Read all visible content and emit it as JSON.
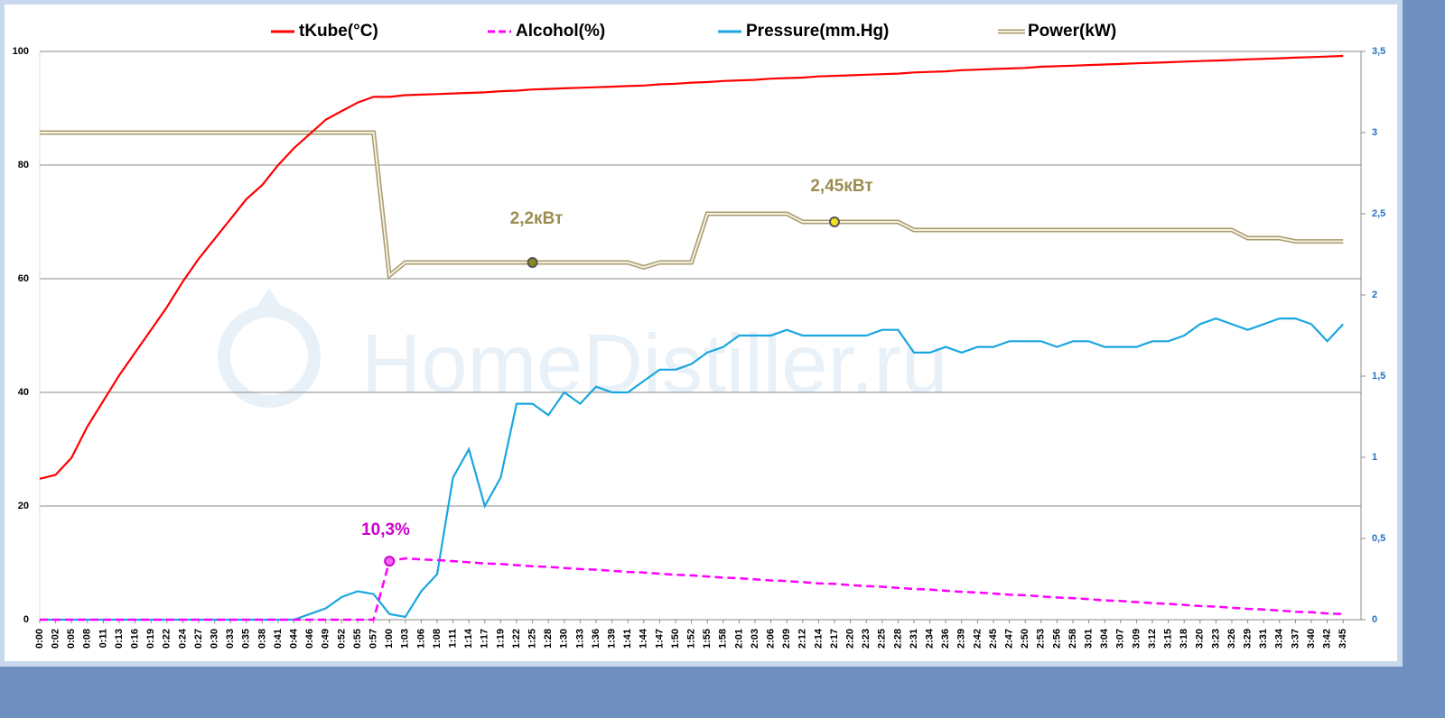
{
  "chart_data": {
    "type": "line",
    "watermark": "HomeDistiller.ru",
    "categories": [
      "0:00",
      "0:02",
      "0:05",
      "0:08",
      "0:11",
      "0:13",
      "0:16",
      "0:19",
      "0:22",
      "0:24",
      "0:27",
      "0:30",
      "0:33",
      "0:35",
      "0:38",
      "0:41",
      "0:44",
      "0:46",
      "0:49",
      "0:52",
      "0:55",
      "0:57",
      "1:00",
      "1:03",
      "1:06",
      "1:08",
      "1:11",
      "1:14",
      "1:17",
      "1:19",
      "1:22",
      "1:25",
      "1:28",
      "1:30",
      "1:33",
      "1:36",
      "1:39",
      "1:41",
      "1:44",
      "1:47",
      "1:50",
      "1:52",
      "1:55",
      "1:58",
      "2:01",
      "2:03",
      "2:06",
      "2:09",
      "2:12",
      "2:14",
      "2:17",
      "2:20",
      "2:23",
      "2:25",
      "2:28",
      "2:31",
      "2:34",
      "2:36",
      "2:39",
      "2:42",
      "2:45",
      "2:47",
      "2:50",
      "2:53",
      "2:56",
      "2:58",
      "3:01",
      "3:04",
      "3:07",
      "3:09",
      "3:12",
      "3:15",
      "3:18",
      "3:20",
      "3:23",
      "3:26",
      "3:29",
      "3:31",
      "3:34",
      "3:37",
      "3:40",
      "3:42",
      "3:45"
    ],
    "series": [
      {
        "name": "tKube(°C)",
        "color": "#ff0000",
        "style": "solid",
        "values": [
          24.8,
          25.5,
          28.5,
          34,
          38.5,
          43,
          47,
          51,
          55,
          59.5,
          63.5,
          67,
          70.5,
          74,
          76.5,
          80,
          83,
          85.5,
          88,
          89.5,
          91,
          92,
          92,
          92.3,
          92.4,
          92.5,
          92.6,
          92.7,
          92.8,
          93,
          93.1,
          93.3,
          93.4,
          93.5,
          93.6,
          93.7,
          93.8,
          93.9,
          94,
          94.2,
          94.3,
          94.5,
          94.6,
          94.8,
          94.9,
          95,
          95.2,
          95.3,
          95.4,
          95.6,
          95.7,
          95.8,
          95.9,
          96,
          96.1,
          96.3,
          96.4,
          96.5,
          96.7,
          96.8,
          96.9,
          97,
          97.1,
          97.3,
          97.4,
          97.5,
          97.6,
          97.7,
          97.8,
          97.9,
          98,
          98.1,
          98.2,
          98.3,
          98.4,
          98.5,
          98.6,
          98.7,
          98.8,
          98.9,
          99,
          99.1,
          99.2
        ]
      },
      {
        "name": "Alcohol(%)",
        "color": "#ff00ff",
        "style": "dashed",
        "values": [
          0,
          0,
          0,
          0,
          0,
          0,
          0,
          0,
          0,
          0,
          0,
          0,
          0,
          0,
          0,
          0,
          0,
          0,
          0,
          0,
          0,
          0,
          10.3,
          10.8,
          10.6,
          10.5,
          10.3,
          10.1,
          9.9,
          9.8,
          9.6,
          9.4,
          9.3,
          9.1,
          8.9,
          8.8,
          8.6,
          8.4,
          8.3,
          8.1,
          7.9,
          7.8,
          7.6,
          7.4,
          7.3,
          7.1,
          6.9,
          6.8,
          6.6,
          6.4,
          6.3,
          6.1,
          5.9,
          5.8,
          5.6,
          5.4,
          5.3,
          5.1,
          4.9,
          4.8,
          4.6,
          4.4,
          4.3,
          4.1,
          3.9,
          3.8,
          3.6,
          3.4,
          3.3,
          3.1,
          2.9,
          2.8,
          2.6,
          2.4,
          2.3,
          2.1,
          1.9,
          1.8,
          1.6,
          1.4,
          1.3,
          1.1,
          1.0
        ]
      },
      {
        "name": "Pressure(mm.Hg)",
        "color": "#1aa6e0",
        "style": "solid",
        "values": [
          0,
          0,
          0,
          0,
          0,
          0,
          0,
          0,
          0,
          0,
          0,
          0,
          0,
          0,
          0,
          0,
          0,
          1,
          2,
          4,
          5,
          4.5,
          1,
          0.5,
          5,
          8,
          25,
          30,
          20,
          25,
          38,
          38,
          36,
          40,
          38,
          41,
          40,
          40,
          42,
          44,
          44,
          45,
          47,
          48,
          50,
          50,
          50,
          51,
          50,
          50,
          50,
          50,
          50,
          51,
          51,
          47,
          47,
          48,
          47,
          48,
          48,
          49,
          49,
          49,
          48,
          49,
          49,
          48,
          48,
          48,
          49,
          49,
          50,
          52,
          53,
          52,
          51,
          52,
          53,
          53,
          52,
          49,
          52
        ]
      },
      {
        "name": "Power(kW)",
        "color": "#a89c6e",
        "style": "double",
        "axis": "y2",
        "values": [
          3,
          3,
          3,
          3,
          3,
          3,
          3,
          3,
          3,
          3,
          3,
          3,
          3,
          3,
          3,
          3,
          3,
          3,
          3,
          3,
          3,
          3,
          2.12,
          2.2,
          2.2,
          2.2,
          2.2,
          2.2,
          2.2,
          2.2,
          2.2,
          2.2,
          2.2,
          2.2,
          2.2,
          2.2,
          2.2,
          2.2,
          2.17,
          2.2,
          2.2,
          2.2,
          2.5,
          2.5,
          2.5,
          2.5,
          2.5,
          2.5,
          2.45,
          2.45,
          2.45,
          2.45,
          2.45,
          2.45,
          2.45,
          2.4,
          2.4,
          2.4,
          2.4,
          2.4,
          2.4,
          2.4,
          2.4,
          2.4,
          2.4,
          2.4,
          2.4,
          2.4,
          2.4,
          2.4,
          2.4,
          2.4,
          2.4,
          2.4,
          2.4,
          2.4,
          2.35,
          2.35,
          2.35,
          2.33,
          2.33,
          2.33,
          2.33
        ]
      }
    ],
    "annotations": [
      "10,3%",
      "2,2кВт",
      "2,45кВт"
    ],
    "ylim": [
      0,
      100
    ],
    "yticks": [
      0,
      20,
      40,
      60,
      80,
      100
    ],
    "y2lim": [
      0,
      3.5
    ],
    "y2ticks": [
      0,
      {
        "value": 0.5,
        "label": "0,5"
      },
      1,
      {
        "value": 1.5,
        "label": "1,5"
      },
      2,
      {
        "value": 2.5,
        "label": "2,5"
      },
      3,
      {
        "value": 3.5,
        "label": "3,5"
      }
    ],
    "grid": true,
    "legend": "top"
  }
}
